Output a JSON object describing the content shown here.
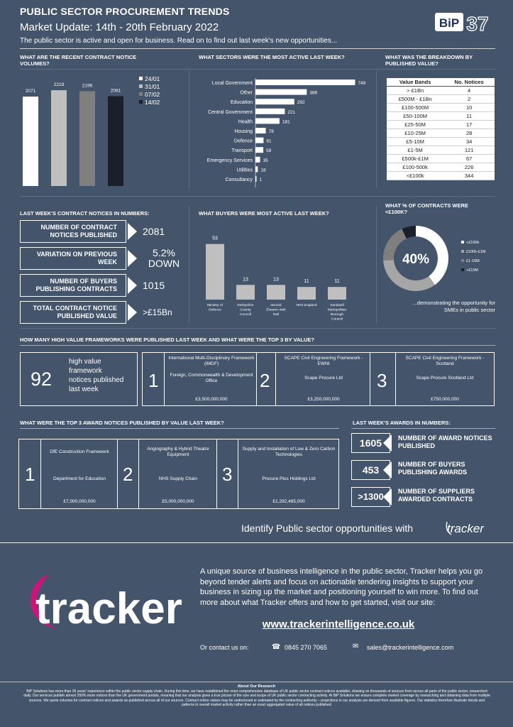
{
  "header": {
    "title": "PUBLIC SECTOR PROCUREMENT TRENDS",
    "subtitle": "Market Update: 14th - 20th February 2022",
    "description": "The public sector is active and open for business. Read on to find out last week's new opportunities...",
    "logo_text": "BiP",
    "logo_number": "37"
  },
  "volumes": {
    "heading": "WHAT ARE THE RECENT CONTRACT NOTICE VOLUMES?",
    "chart_data": {
      "type": "bar",
      "categories": [
        "24/01",
        "31/01",
        "07/02",
        "14/02"
      ],
      "values": [
        2071,
        2219,
        2196,
        2081
      ],
      "colors": [
        "#ffffff",
        "#bfbfbf",
        "#7f7f7f",
        "#1b1f2a"
      ],
      "ylim": [
        0,
        2500
      ]
    }
  },
  "sectors": {
    "heading": "WHAT SECTORS WERE THE MOST ACTIVE LAST WEEK?",
    "chart_data": {
      "type": "bar",
      "orientation": "horizontal",
      "categories": [
        "Local Government",
        "Other",
        "Education",
        "Central Government",
        "Health",
        "Housing",
        "Defence",
        "Transport",
        "Emergency Services",
        "Utilities",
        "Consultancy"
      ],
      "values": [
        749,
        386,
        292,
        221,
        181,
        78,
        61,
        59,
        35,
        18,
        1
      ],
      "xlim": [
        0,
        800
      ]
    }
  },
  "value_bands": {
    "heading": "WHAT WAS THE BREAKDOWN BY PUBLISHED VALUE?",
    "col_band": "Value Bands",
    "col_count": "No. Notices",
    "rows": [
      {
        "band": "> £1Bn",
        "count": "4"
      },
      {
        "band": "£500M - £1Bn",
        "count": "2"
      },
      {
        "band": "£100-500M",
        "count": "10"
      },
      {
        "band": "£50-100M",
        "count": "11"
      },
      {
        "band": "£25-50M",
        "count": "17"
      },
      {
        "band": "£10-25M",
        "count": "28"
      },
      {
        "band": "£5-10M",
        "count": "34"
      },
      {
        "band": "£1-5M",
        "count": "121"
      },
      {
        "band": "£500k-£1M",
        "count": "67"
      },
      {
        "band": "£100-500k",
        "count": "226"
      },
      {
        "band": "<£100k",
        "count": "344"
      }
    ]
  },
  "numbers": {
    "heading": "LAST WEEK'S CONTRACT NOTICES IN NUMBERS:",
    "items": [
      {
        "label": "NUMBER OF CONTRACT NOTICES PUBLISHED",
        "value": "2081"
      },
      {
        "label": "VARIATION ON PREVIOUS WEEK",
        "value": "5.2% DOWN"
      },
      {
        "label": "NUMBER OF BUYERS PUBLISHING CONTRACTS",
        "value": "1015"
      },
      {
        "label": "TOTAL CONTRACT NOTICE PUBLISHED VALUE",
        "value": ">£15Bn"
      }
    ]
  },
  "buyers": {
    "heading": "WHAT BUYERS WERE MOST ACTIVE LAST WEEK?",
    "chart_data": {
      "type": "bar",
      "categories": [
        "Ministry of Defence",
        "Derbyshire County Council",
        "Iarnród Éireann-Irish Rail",
        "NHS England",
        "Sandwell Metropolitan Borough Council"
      ],
      "values": [
        53,
        13,
        13,
        11,
        11
      ],
      "ylim": [
        0,
        60
      ]
    }
  },
  "percent": {
    "heading": "WHAT % OF CONTRACTS WERE <£100K?",
    "center_label": "40%",
    "caption_1": "...demonstrating the opportunity for",
    "caption_2": "SMEs in public sector",
    "chart_data": {
      "type": "pie",
      "categories": [
        "<£100k",
        "£100k-£1M",
        "£1-10M",
        ">£10M"
      ],
      "values": [
        40,
        34,
        19,
        7
      ],
      "colors": [
        "#ffffff",
        "#a6a6a6",
        "#7f7f7f",
        "#1b1f2a"
      ]
    }
  },
  "frameworks": {
    "heading": "HOW MANY HIGH VALUE FRAMEWORKS WERE PUBLISHED LAST WEEK AND WHAT WERE THE TOP 3 BY VALUE?",
    "count": "92",
    "count_label": "high value framework notices published last week",
    "items": [
      {
        "rank": "1",
        "title": "International Multi-Disciplinary Framework (IMDF)",
        "buyer": "Foreign, Commonwealth & Development Office",
        "value": "£3,500,000,000"
      },
      {
        "rank": "2",
        "title": "SCAPE Civil Engineering Framework - EWNI",
        "buyer": "Scape Procure Ltd",
        "value": "£3,250,000,000"
      },
      {
        "rank": "3",
        "title": "SCAPE Civil Engineering Framework - Scotland",
        "buyer": "Scape Procure Scotland Ltd",
        "value": "£750,000,000"
      }
    ]
  },
  "awards": {
    "heading": "WHAT WERE THE TOP 3 AWARD NOTICES PUBLISHED BY VALUE LAST WEEK?",
    "items": [
      {
        "rank": "1",
        "title": "DfE Construction Framework",
        "buyer": "Department for Education",
        "value": "£7,000,000,000"
      },
      {
        "rank": "2",
        "title": "Angiography & Hybrid Theatre Equipment",
        "buyer": "NHS Supply Chain",
        "value": "£5,000,000,000"
      },
      {
        "rank": "3",
        "title": "Supply and Installation of Low & Zero Carbon Technologies",
        "buyer": "Procure Plus Holdings Ltd",
        "value": "£1,292,485,000"
      }
    ]
  },
  "award_numbers": {
    "heading": "LAST WEEK'S AWARDS IN NUMBERS:",
    "items": [
      {
        "value": "1605",
        "label": "NUMBER OF AWARD NOTICES PUBLISHED"
      },
      {
        "value": "453",
        "label": "NUMBER OF BUYERS PUBLISHING AWARDS"
      },
      {
        "value": ">1300",
        "label": "NUMBER OF SUPPLIERS AWARDED CONTRACTS"
      }
    ]
  },
  "cta": {
    "text": "Identify Public sector opportunities with",
    "brand": "tracker"
  },
  "footer": {
    "logo": "tracker",
    "paragraph": "A unique source of business intelligence in the public sector, Tracker helps you go beyond tender alerts and focus on actionable tendering insights to support your business in sizing up the market and positioning yourself to win more. To find out more about what Tracker offers and how to get started, visit our site:",
    "url": "www.trackerintelligence.co.uk",
    "contact_label": "Or contact us on:",
    "phone": "0845 270 7065",
    "email": "sales@trackerintelligence.com",
    "about_title": "About Our Research",
    "about_text": "BiP Solutions has more than 36 years' experience within the public sector supply chain. During this time, we have established the most comprehensive database of UK public sector contract notices available, drawing on thousands of sources from across all parts of the public sector, researched daily. Our services publish almost 250% more notices than the UK government portals, meaning that our analysis gives a true picture of the size and scope of UK public sector contracting activity. At BiP Solutions we ensure complete market coverage by researching and obtaining data from multiple sources. We quote volumes for contract notices and awards as published across all of our sources. Contract notice values may be undisclosed or estimated by the contracting authority – projections in our analysis are derived from available figures. Our statistics therefore illustrate trends and patterns in overall market activity rather than an exact aggregated value of all notices published."
  }
}
